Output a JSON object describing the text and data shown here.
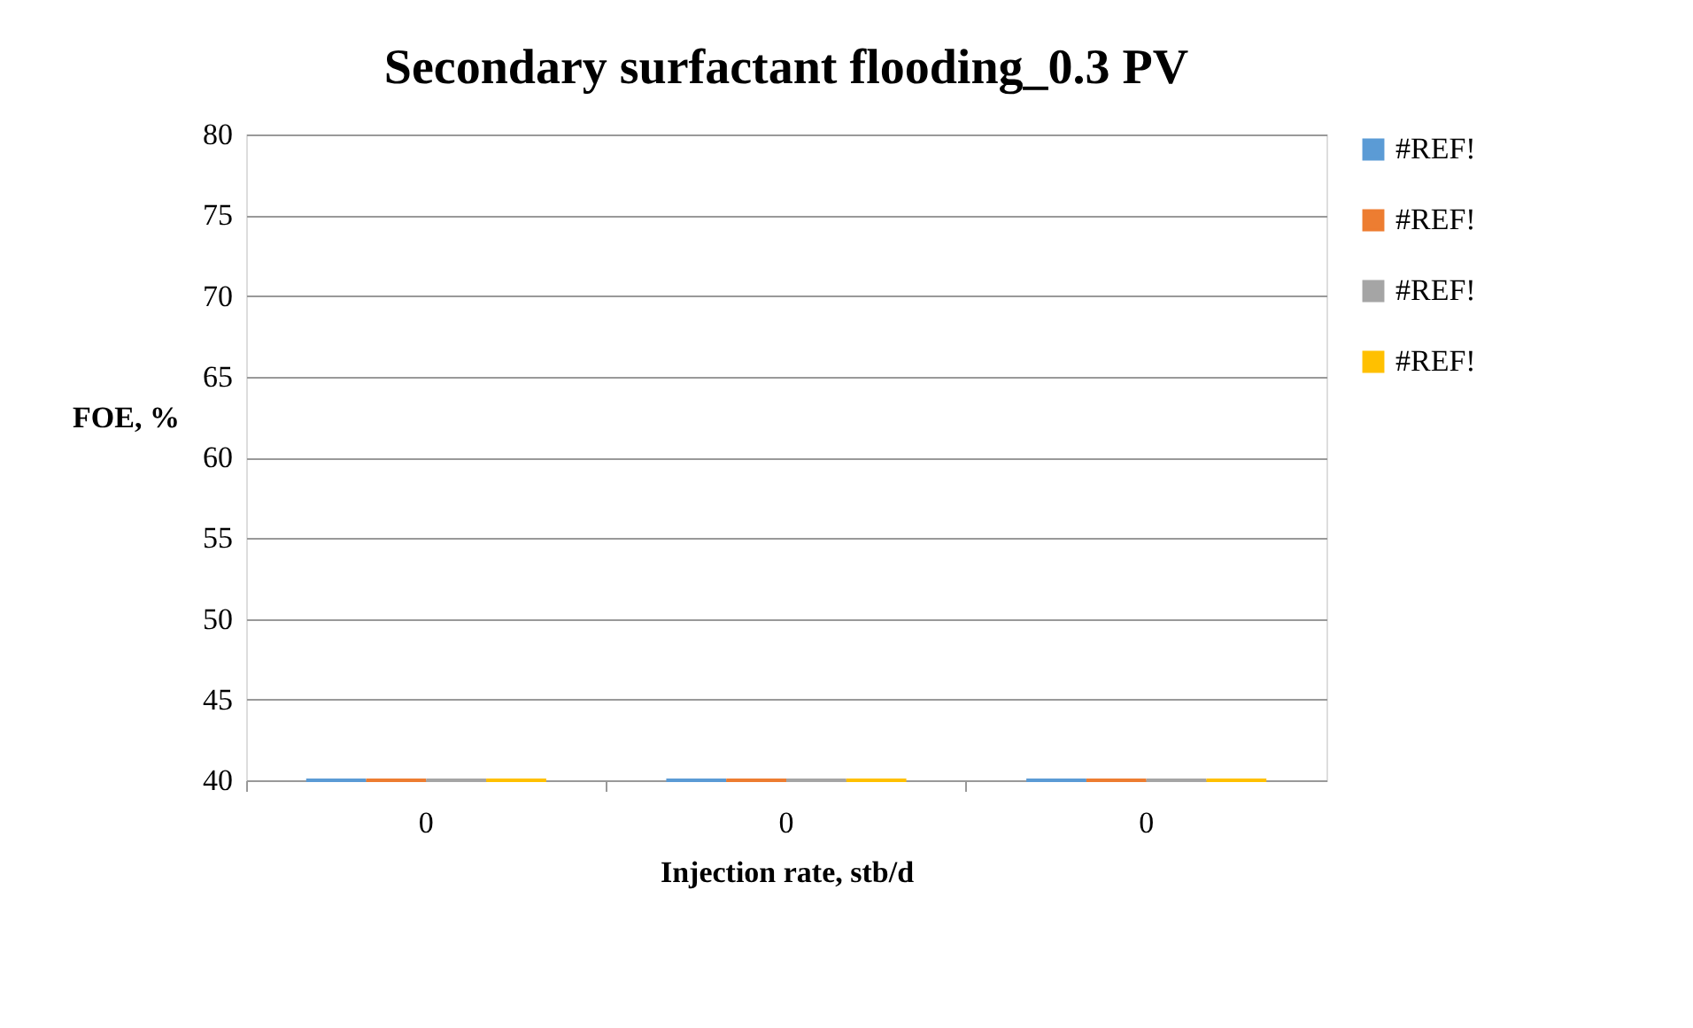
{
  "chart_data": {
    "type": "bar",
    "title": "Secondary surfactant flooding_0.3 PV",
    "xlabel": "Injection rate, stb/d",
    "ylabel": "FOE, %",
    "categories": [
      "0",
      "0",
      "0"
    ],
    "series": [
      {
        "name": "#REF!",
        "color": "#5b9bd5",
        "values": [
          40,
          40,
          40
        ]
      },
      {
        "name": "#REF!",
        "color": "#ed7d31",
        "values": [
          40,
          40,
          40
        ]
      },
      {
        "name": "#REF!",
        "color": "#a5a5a5",
        "values": [
          40,
          40,
          40
        ]
      },
      {
        "name": "#REF!",
        "color": "#ffc000",
        "values": [
          40,
          40,
          40
        ]
      }
    ],
    "ylim": [
      40,
      80
    ],
    "yticks": [
      40,
      45,
      50,
      55,
      60,
      65,
      70,
      75,
      80
    ],
    "grid": "y",
    "legend": "right"
  }
}
